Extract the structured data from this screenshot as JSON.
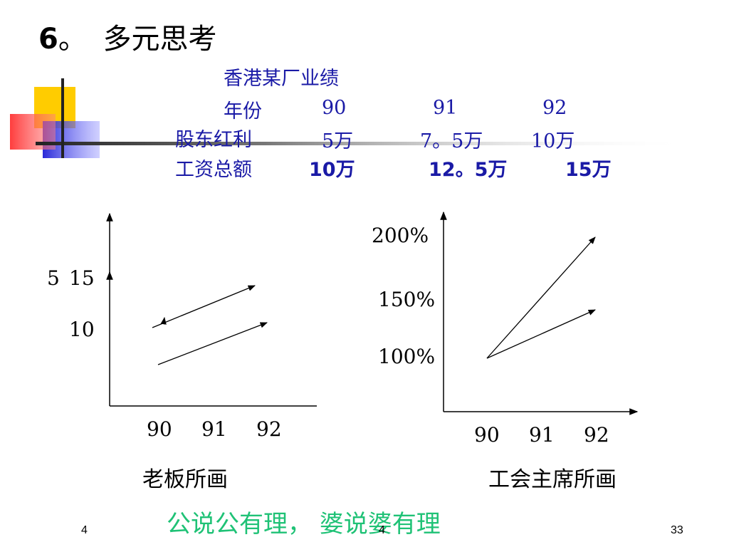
{
  "title": {
    "number": "6",
    "sep": "。",
    "text": "多元思考"
  },
  "table": {
    "caption": "香港某厂业绩",
    "header_label": "年份",
    "years": [
      "90",
      "91",
      "92"
    ],
    "rows": [
      {
        "label": "股东红利",
        "values": [
          "5万",
          "7。5万",
          "10万"
        ]
      },
      {
        "label": "工资总额",
        "values": [
          "10万",
          "12。5万",
          "15万"
        ]
      }
    ]
  },
  "chart_left": {
    "ylabels": [
      "5",
      "15",
      "10"
    ],
    "xlabels": [
      "90",
      "91",
      "92"
    ],
    "caption": "老板所画"
  },
  "chart_right": {
    "ylabels": [
      "200%",
      "150%",
      "100%"
    ],
    "xlabels": [
      "90",
      "91",
      "92"
    ],
    "caption": "工会主席所画"
  },
  "slogan": "公说公有理，  婆说婆有理",
  "footer": {
    "left": "4",
    "center": "4",
    "right": "33"
  },
  "chart_data": [
    {
      "type": "line",
      "x": [
        "90",
        "91",
        "92"
      ],
      "series": [
        {
          "values": [
            5,
            7.5,
            10
          ]
        },
        {
          "values": [
            10,
            12.5,
            15
          ]
        }
      ]
    },
    {
      "type": "line",
      "x": [
        "90",
        "91",
        "92"
      ],
      "series": [
        {
          "values": [
            100,
            150,
            200
          ]
        },
        {
          "values": [
            100,
            125,
            150
          ]
        }
      ]
    }
  ]
}
